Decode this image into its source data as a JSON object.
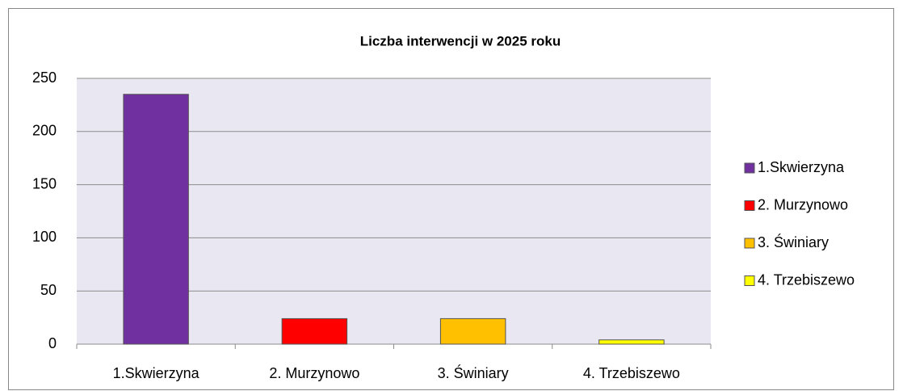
{
  "chart_data": {
    "type": "bar",
    "title": "Liczba interwencji w 2025 roku",
    "categories": [
      "1.Skwierzyna",
      "2. Murzynowo",
      "3. Świniary",
      "4. Trzebiszewo"
    ],
    "values": [
      235,
      24,
      24,
      4
    ],
    "colors": [
      "#7030a0",
      "#ff0000",
      "#ffc000",
      "#ffff00"
    ],
    "ylim": [
      0,
      250
    ],
    "yticks": [
      0,
      50,
      100,
      150,
      200,
      250
    ],
    "grid": true,
    "legend": "right"
  }
}
